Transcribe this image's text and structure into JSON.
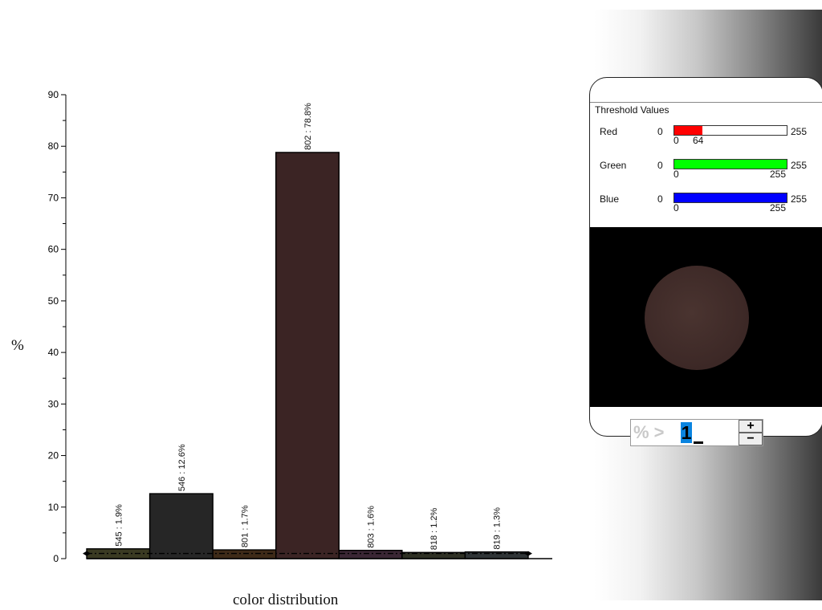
{
  "chart_data": {
    "type": "bar",
    "categories": [
      "545",
      "546",
      "801",
      "802",
      "803",
      "818",
      "819"
    ],
    "values": [
      1.9,
      12.6,
      1.7,
      78.8,
      1.6,
      1.2,
      1.3
    ],
    "bar_labels": [
      "545 : 1.9%",
      "546 : 12.6%",
      "801 : 1.7%",
      "802 : 78.8%",
      "803 : 1.6%",
      "818 : 1.2%",
      "819 : 1.3%"
    ],
    "bar_colors": [
      "#3a3a22",
      "#262626",
      "#3e2a18",
      "#3b2424",
      "#3a2634",
      "#2e3024",
      "#2f3436"
    ],
    "threshold_line": 1,
    "title": "",
    "xlabel": "color distribution",
    "ylabel": "%",
    "ylim": [
      0,
      90
    ],
    "yticks": [
      "0",
      "10",
      "20",
      "30",
      "40",
      "50",
      "60",
      "70",
      "80",
      "90"
    ],
    "grid": false
  },
  "threshold": {
    "title": "Threshold Values",
    "rows": [
      {
        "name": "Red",
        "min": "0",
        "max": "255",
        "low": "0",
        "high": "64",
        "fill": 0.251,
        "color": "#ff0000"
      },
      {
        "name": "Green",
        "min": "0",
        "max": "255",
        "low": "0",
        "high": "255",
        "fill": 1.0,
        "color": "#00ff00"
      },
      {
        "name": "Blue",
        "min": "0",
        "max": "255",
        "low": "0",
        "high": "255",
        "fill": 1.0,
        "color": "#0000ff"
      }
    ]
  },
  "percent_filter": {
    "prefix": "% >",
    "value": "1",
    "plus": "+",
    "minus": "−"
  }
}
